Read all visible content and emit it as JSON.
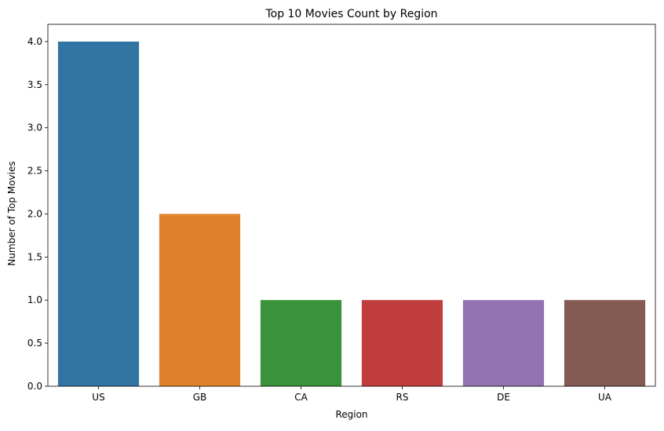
{
  "chart_data": {
    "type": "bar",
    "title": "Top 10 Movies Count by Region",
    "xlabel": "Region",
    "ylabel": "Number of Top Movies",
    "categories": [
      "US",
      "GB",
      "CA",
      "RS",
      "DE",
      "UA"
    ],
    "values": [
      4,
      2,
      1,
      1,
      1,
      1
    ],
    "colors": [
      "#3274a1",
      "#e1812c",
      "#3a923a",
      "#c03d3e",
      "#9372b2",
      "#845b53"
    ],
    "ylim": [
      0,
      4.2
    ],
    "yticks": [
      "0.0",
      "0.5",
      "1.0",
      "1.5",
      "2.0",
      "2.5",
      "3.0",
      "3.5",
      "4.0"
    ],
    "grid": false,
    "legend": "none"
  }
}
